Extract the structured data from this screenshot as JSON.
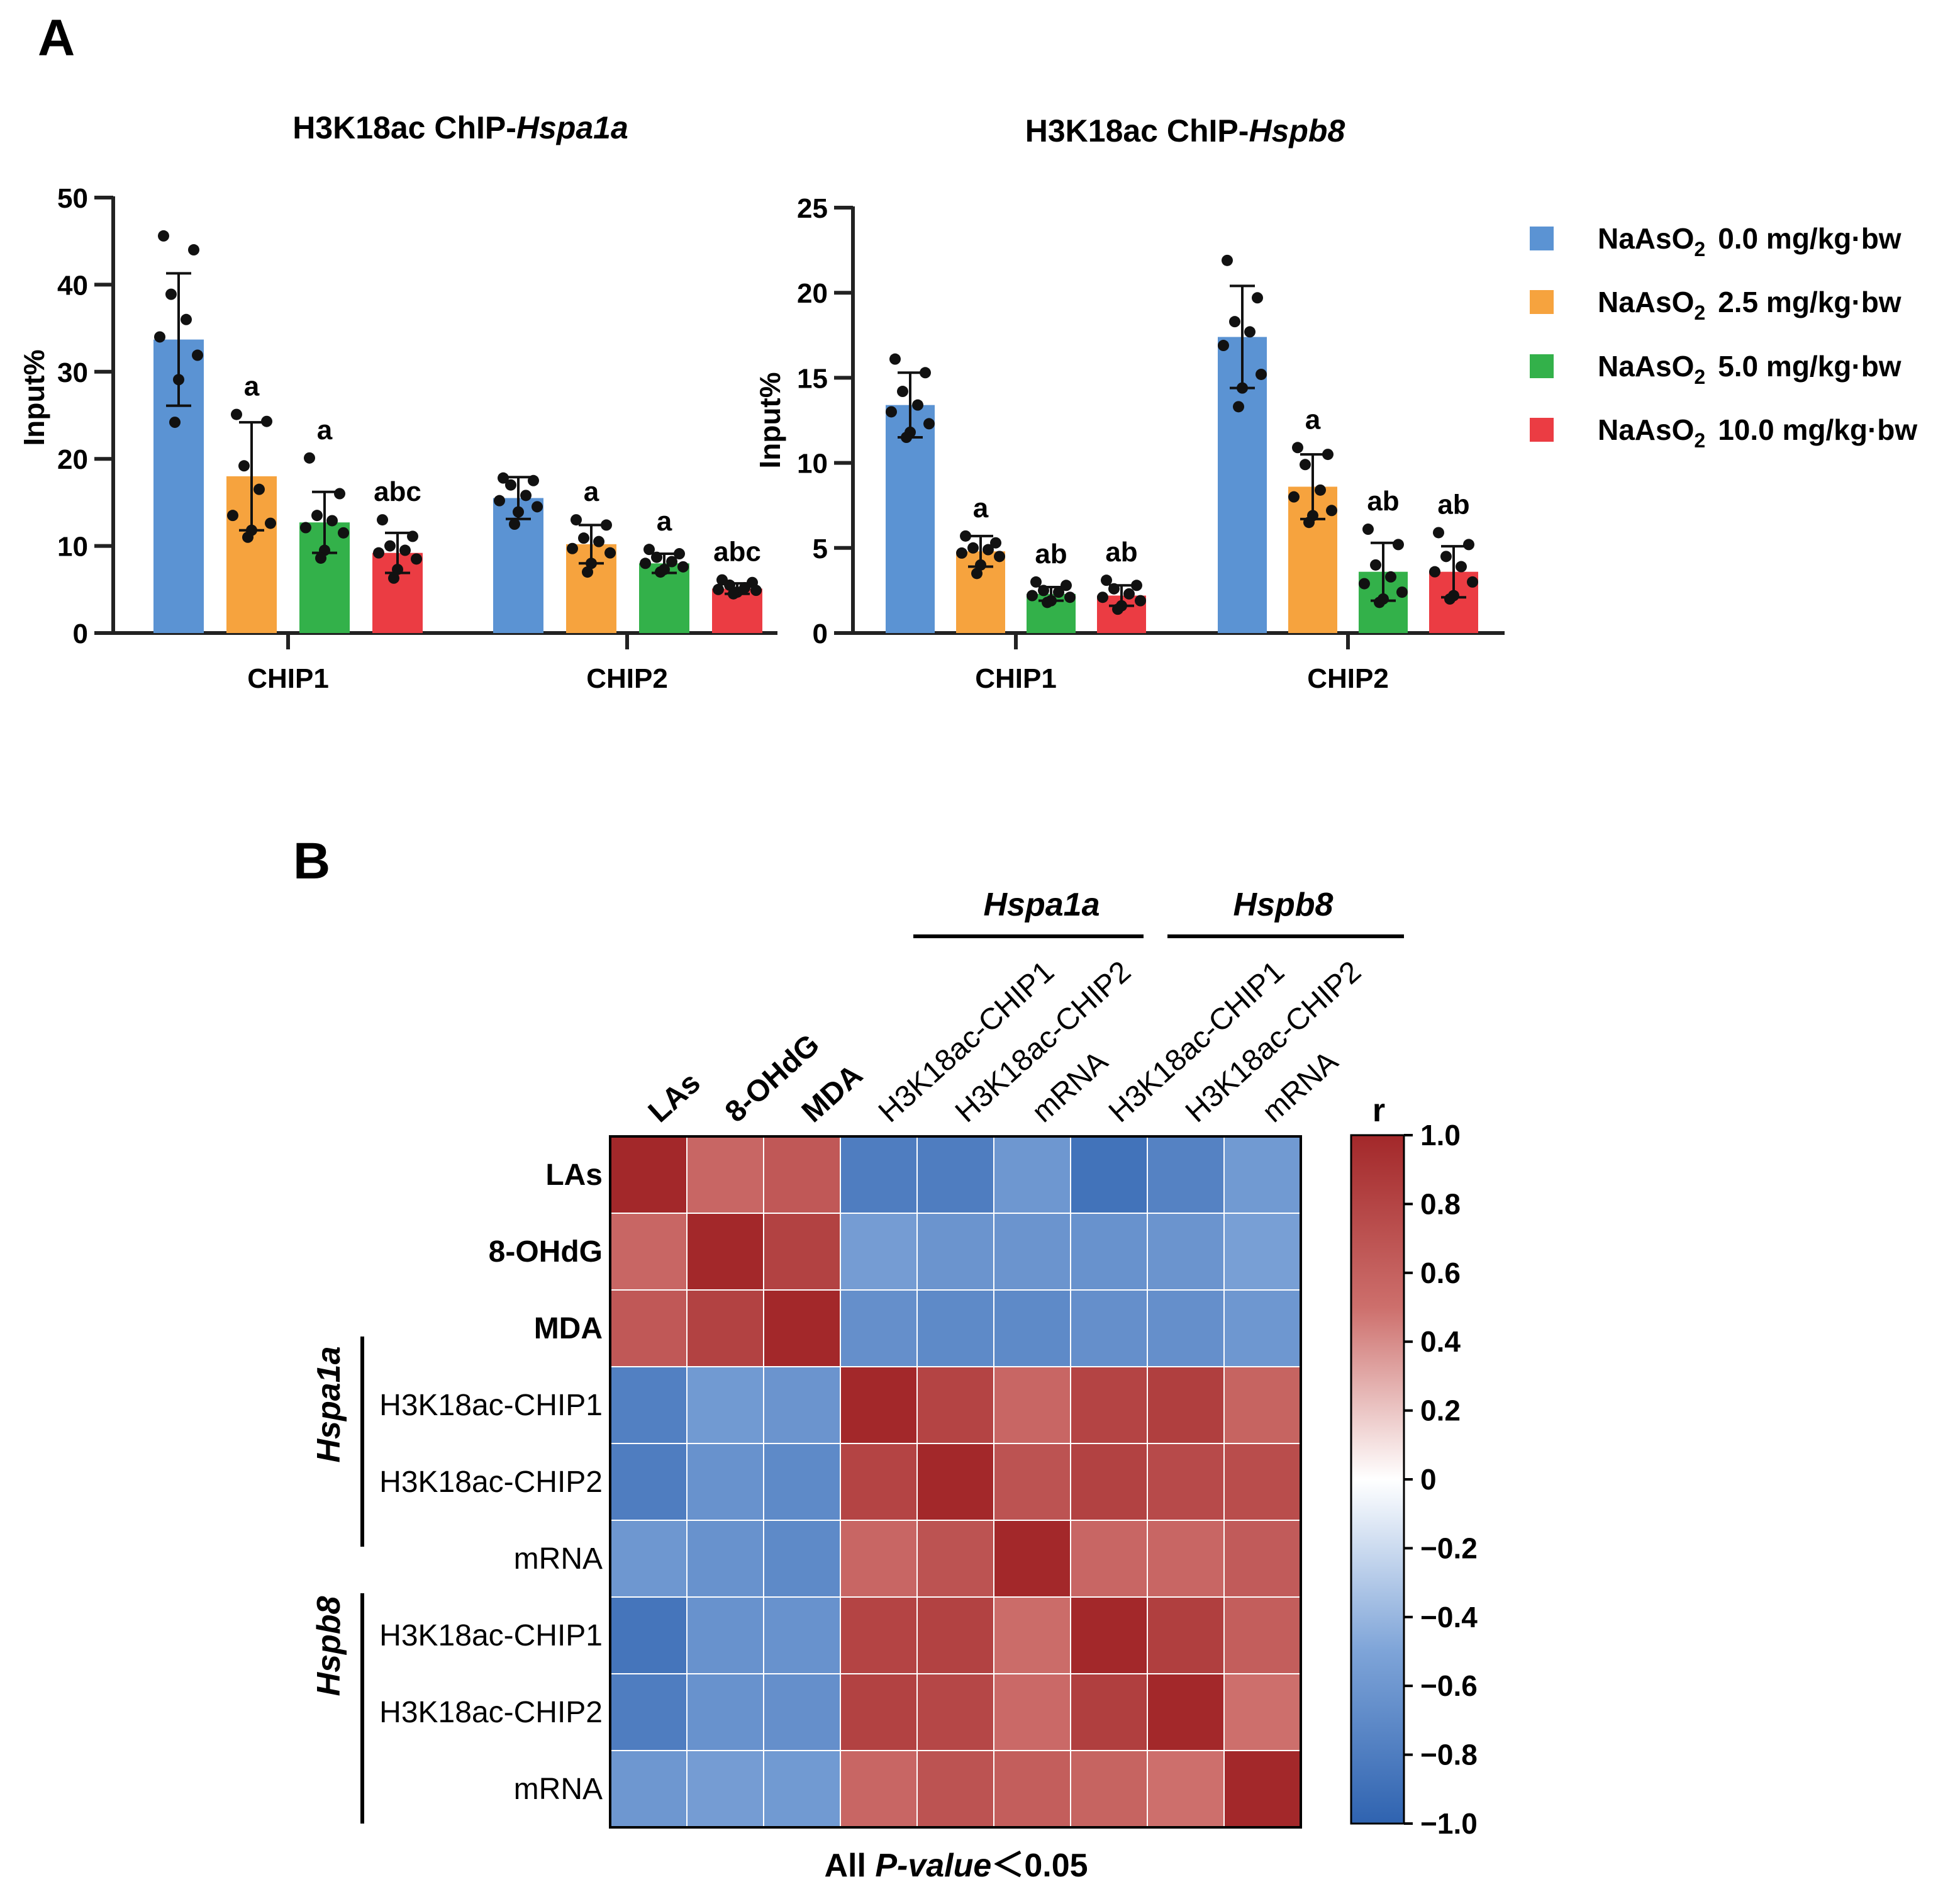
{
  "panel_labels": [
    "A",
    "B"
  ],
  "chart_data": [
    {
      "type": "bar",
      "title": "H3K18ac ChIP-",
      "title_gene": "Hspa1a",
      "xlabel": "",
      "ylabel": "Input%",
      "ylim": [
        0,
        50
      ],
      "yticks": [
        "0",
        "10",
        "20",
        "30",
        "40",
        "50"
      ],
      "categories": [
        "CHIP1",
        "CHIP2"
      ],
      "series": [
        {
          "name": "NaAsO2 0.0 mg/kg·bw",
          "values": [
            33.7,
            15.5
          ],
          "err": [
            7.6,
            2.4
          ],
          "sig": [
            "",
            ""
          ],
          "points": [
            [
              45.6,
              44.0,
              38.9,
              36.0,
              34.0,
              31.9,
              29.1,
              24.2
            ],
            [
              17.8,
              17.5,
              17.0,
              15.8,
              15.2,
              14.5,
              13.9,
              12.5
            ]
          ]
        },
        {
          "name": "NaAsO2 2.5 mg/kg·bw",
          "values": [
            18.0,
            10.2
          ],
          "err": [
            6.2,
            2.2
          ],
          "sig": [
            "a",
            "a"
          ],
          "points": [
            [
              25.1,
              24.3,
              19.2,
              16.5,
              13.5,
              12.6,
              11.8,
              11.0
            ],
            [
              13.0,
              12.4,
              10.9,
              10.5,
              9.7,
              9.2,
              8.0,
              7.0
            ]
          ]
        },
        {
          "name": "NaAsO2 5.0 mg/kg·bw",
          "values": [
            12.7,
            8.0
          ],
          "err": [
            3.5,
            1.1
          ],
          "sig": [
            "a",
            "a"
          ],
          "points": [
            [
              20.1,
              16.0,
              13.5,
              12.9,
              12.1,
              11.5,
              9.5,
              8.6
            ],
            [
              9.6,
              9.1,
              8.7,
              8.2,
              8.0,
              7.6,
              7.3,
              7.0
            ]
          ]
        },
        {
          "name": "NaAsO2 10.0 mg/kg·bw",
          "values": [
            9.2,
            5.1
          ],
          "err": [
            2.3,
            0.6
          ],
          "sig": [
            "abc",
            "abc"
          ],
          "points": [
            [
              13.0,
              11.1,
              10.0,
              9.5,
              9.2,
              8.5,
              7.3,
              6.3
            ],
            [
              6.1,
              5.8,
              5.5,
              5.2,
              5.0,
              4.9,
              4.7,
              4.5
            ]
          ]
        }
      ]
    },
    {
      "type": "bar",
      "title": "H3K18ac ChIP-",
      "title_gene": "Hspb8",
      "xlabel": "",
      "ylabel": "Input%",
      "ylim": [
        0,
        25
      ],
      "yticks": [
        "0",
        "5",
        "10",
        "15",
        "20",
        "25"
      ],
      "categories": [
        "CHIP1",
        "CHIP2"
      ],
      "series": [
        {
          "name": "NaAsO2 0.0 mg/kg·bw",
          "values": [
            13.4,
            17.4
          ],
          "err": [
            1.9,
            3.0
          ],
          "sig": [
            "",
            ""
          ],
          "points": [
            [
              16.1,
              15.3,
              14.2,
              13.4,
              13.0,
              12.3,
              11.8,
              11.5
            ],
            [
              21.9,
              19.7,
              18.3,
              17.7,
              16.9,
              15.2,
              14.4,
              13.3
            ]
          ]
        },
        {
          "name": "NaAsO2 2.5 mg/kg·bw",
          "values": [
            4.8,
            8.6
          ],
          "err": [
            0.9,
            1.9
          ],
          "sig": [
            "a",
            "a"
          ],
          "points": [
            [
              5.7,
              5.3,
              5.0,
              4.9,
              4.7,
              4.5,
              4.0,
              3.5
            ],
            [
              10.9,
              10.5,
              9.9,
              8.4,
              8.0,
              7.2,
              6.9,
              6.5
            ]
          ]
        },
        {
          "name": "NaAsO2 5.0 mg/kg·bw",
          "values": [
            2.3,
            3.6
          ],
          "err": [
            0.4,
            1.7
          ],
          "sig": [
            "ab",
            "ab"
          ],
          "points": [
            [
              3.0,
              2.8,
              2.5,
              2.4,
              2.2,
              2.1,
              1.9,
              1.8
            ],
            [
              6.1,
              5.2,
              4.0,
              3.3,
              2.9,
              2.4,
              2.0,
              1.8
            ]
          ]
        },
        {
          "name": "NaAsO2 10.0 mg/kg·bw",
          "values": [
            2.2,
            3.6
          ],
          "err": [
            0.6,
            1.5
          ],
          "sig": [
            "ab",
            "ab"
          ],
          "points": [
            [
              3.1,
              2.8,
              2.6,
              2.3,
              2.1,
              1.9,
              1.6,
              1.4
            ],
            [
              5.9,
              5.2,
              4.5,
              3.9,
              3.6,
              3.0,
              2.2,
              2.0
            ]
          ]
        }
      ]
    },
    {
      "type": "heatmap",
      "title": "",
      "footnote_pre": "All ",
      "footnote_italic": "P-value",
      "footnote_post": "＜0.05",
      "row_labels": [
        "LAs",
        "8-OHdG",
        "MDA",
        "H3K18ac-CHIP1",
        "H3K18ac-CHIP2",
        "mRNA",
        "H3K18ac-CHIP1",
        "H3K18ac-CHIP2",
        "mRNA"
      ],
      "col_labels": [
        "LAs",
        "8-OHdG",
        "MDA",
        "H3K18ac-CHIP1",
        "H3K18ac-CHIP2",
        "mRNA",
        "H3K18ac-CHIP1",
        "H3K18ac-CHIP2",
        "mRNA"
      ],
      "bold_labels": [
        "LAs",
        "8-OHdG",
        "MDA"
      ],
      "groups": [
        "Hspa1a",
        "Hspb8"
      ],
      "colorbar_title": "r",
      "colorbar_range": [
        -1.0,
        1.0
      ],
      "colorbar_ticks": [
        "1.0",
        "0.8",
        "0.6",
        "0.4",
        "0.2",
        "0",
        "−0.2",
        "−0.4",
        "−0.6",
        "−0.8",
        "−1.0"
      ],
      "values": [
        [
          1.0,
          0.56,
          0.66,
          -0.8,
          -0.8,
          -0.6,
          -0.88,
          -0.76,
          -0.58
        ],
        [
          0.56,
          1.0,
          0.82,
          -0.56,
          -0.62,
          -0.62,
          -0.64,
          -0.62,
          -0.54
        ],
        [
          0.66,
          0.82,
          1.0,
          -0.66,
          -0.7,
          -0.7,
          -0.66,
          -0.66,
          -0.6
        ],
        [
          -0.78,
          -0.58,
          -0.62,
          1.0,
          0.8,
          0.56,
          0.8,
          0.84,
          0.58
        ],
        [
          -0.8,
          -0.64,
          -0.7,
          0.8,
          1.0,
          0.7,
          0.82,
          0.76,
          0.74
        ],
        [
          -0.6,
          -0.64,
          -0.7,
          0.56,
          0.7,
          1.0,
          0.56,
          0.56,
          0.64
        ],
        [
          -0.86,
          -0.64,
          -0.64,
          0.8,
          0.82,
          0.52,
          1.0,
          0.84,
          0.62
        ],
        [
          -0.8,
          -0.64,
          -0.66,
          0.82,
          0.78,
          0.54,
          0.84,
          1.0,
          0.5
        ],
        [
          -0.6,
          -0.56,
          -0.58,
          0.56,
          0.7,
          0.62,
          0.58,
          0.5,
          1.0
        ]
      ]
    }
  ],
  "legend": {
    "colors": [
      "#5b93d3",
      "#f6a33e",
      "#33b14a",
      "#eb3c43"
    ],
    "entries": [
      {
        "chem": "NaAsO",
        "sub": "2",
        "dose": "0.0 mg/kg·bw"
      },
      {
        "chem": "NaAsO",
        "sub": "2",
        "dose": "2.5 mg/kg·bw"
      },
      {
        "chem": "NaAsO",
        "sub": "2",
        "dose": "5.0 mg/kg·bw"
      },
      {
        "chem": "NaAsO",
        "sub": "2",
        "dose": "10.0 mg/kg·bw"
      }
    ]
  }
}
